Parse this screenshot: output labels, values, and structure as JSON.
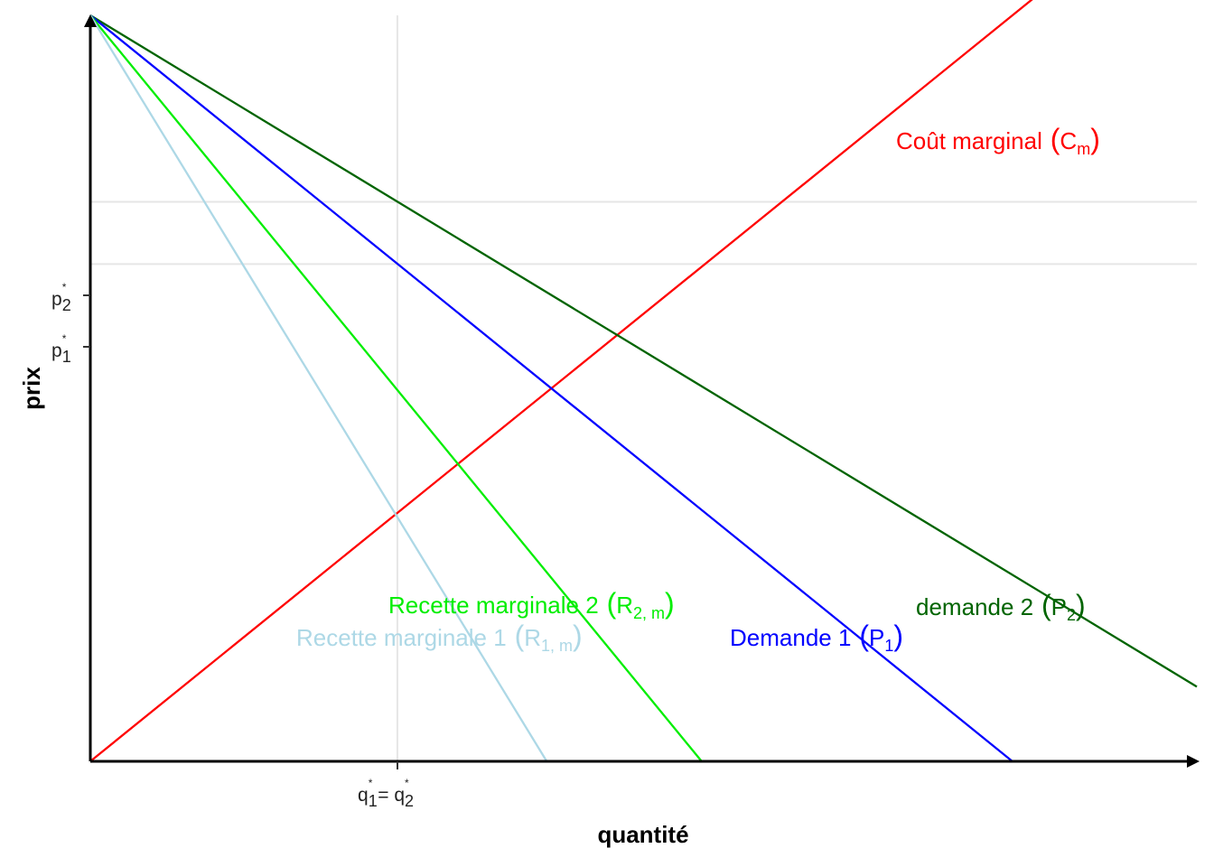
{
  "chart_data": {
    "type": "line",
    "xlabel": "quantité",
    "ylabel": "prix",
    "xlim": [
      0,
      1.2
    ],
    "ylim": [
      0,
      1.2
    ],
    "grid": false,
    "reference_lines": {
      "x": [
        {
          "value": 0.333,
          "label": "q₁* = q₂*"
        }
      ],
      "y": [
        {
          "value": 0.9,
          "label": "p₂*"
        },
        {
          "value": 0.8,
          "label": "p₁*"
        }
      ]
    },
    "series": [
      {
        "name": "Coût marginal (Cm)",
        "color": "#ff0000",
        "x": [
          0,
          1.2
        ],
        "y": [
          0,
          1.44
        ]
      },
      {
        "name": "demande 2 (P2)",
        "color": "#006400",
        "x": [
          0,
          1.2
        ],
        "y": [
          1.2,
          0.12
        ]
      },
      {
        "name": "Demande 1 (P1)",
        "color": "#0000ff",
        "x": [
          0,
          1.0
        ],
        "y": [
          1.2,
          0.0
        ]
      },
      {
        "name": "Recette marginale 2 (R2, m)",
        "color": "#00ee00",
        "x": [
          0,
          0.663
        ],
        "y": [
          1.2,
          0.0
        ]
      },
      {
        "name": "Recette marginale 1 (R1, m)",
        "color": "#add8e6",
        "x": [
          0,
          0.495
        ],
        "y": [
          1.2,
          0.0
        ]
      }
    ]
  },
  "labels": {
    "cm": {
      "main": "Coût marginal",
      "sym": "C",
      "sub": "m"
    },
    "p2": {
      "main": "demande 2",
      "sym": "P",
      "sub": "2"
    },
    "p1": {
      "main": "Demande 1",
      "sym": "P",
      "sub": "1"
    },
    "r2": {
      "main": "Recette marginale 2",
      "sym": "R",
      "sub": "2, m"
    },
    "r1": {
      "main": "Recette marginale 1",
      "sym": "R",
      "sub": "1, m"
    }
  },
  "ticks": {
    "p2": {
      "sym": "p",
      "sub": "2",
      "sup": "*"
    },
    "p1": {
      "sym": "p",
      "sub": "1",
      "sup": "*"
    },
    "q": {
      "sym1": "q",
      "sub1": "1",
      "sup1": "*",
      "eq": " = ",
      "sym2": "q",
      "sub2": "2",
      "sup2": "*"
    }
  }
}
